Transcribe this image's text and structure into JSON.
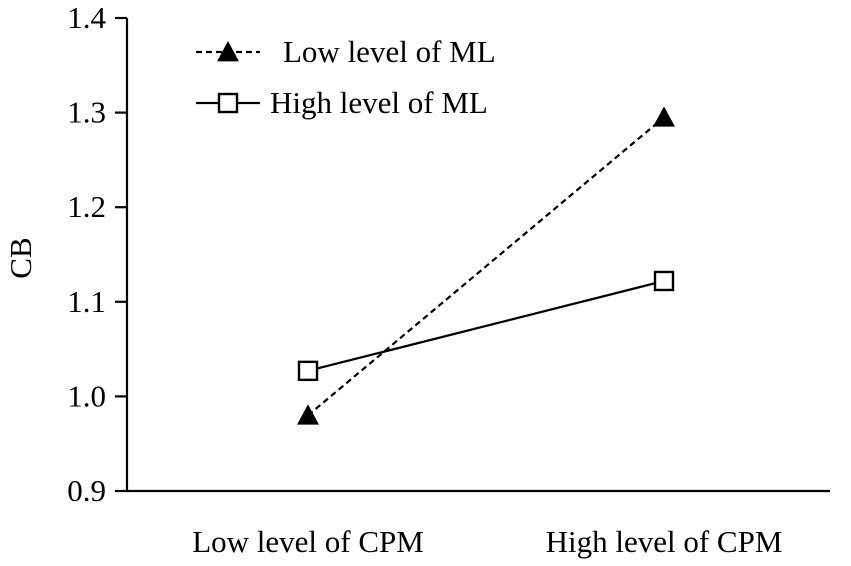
{
  "chart_data": {
    "type": "line",
    "title": "",
    "xlabel": "",
    "ylabel": "CB",
    "categories": [
      "Low level of CPM",
      "High level of CPM"
    ],
    "ylim": [
      0.9,
      1.4
    ],
    "yticks": [
      "0.9",
      "1.0",
      "1.1",
      "1.2",
      "1.3",
      "1.4"
    ],
    "grid": false,
    "legend_position": "top-left",
    "series": [
      {
        "name": "Low level of ML",
        "values": [
          0.98,
          1.295
        ],
        "line_style": "dashed",
        "marker": "filled-triangle",
        "color": "#000000"
      },
      {
        "name": "High level of ML",
        "values": [
          1.027,
          1.122
        ],
        "line_style": "solid",
        "marker": "open-square",
        "color": "#000000"
      }
    ]
  }
}
